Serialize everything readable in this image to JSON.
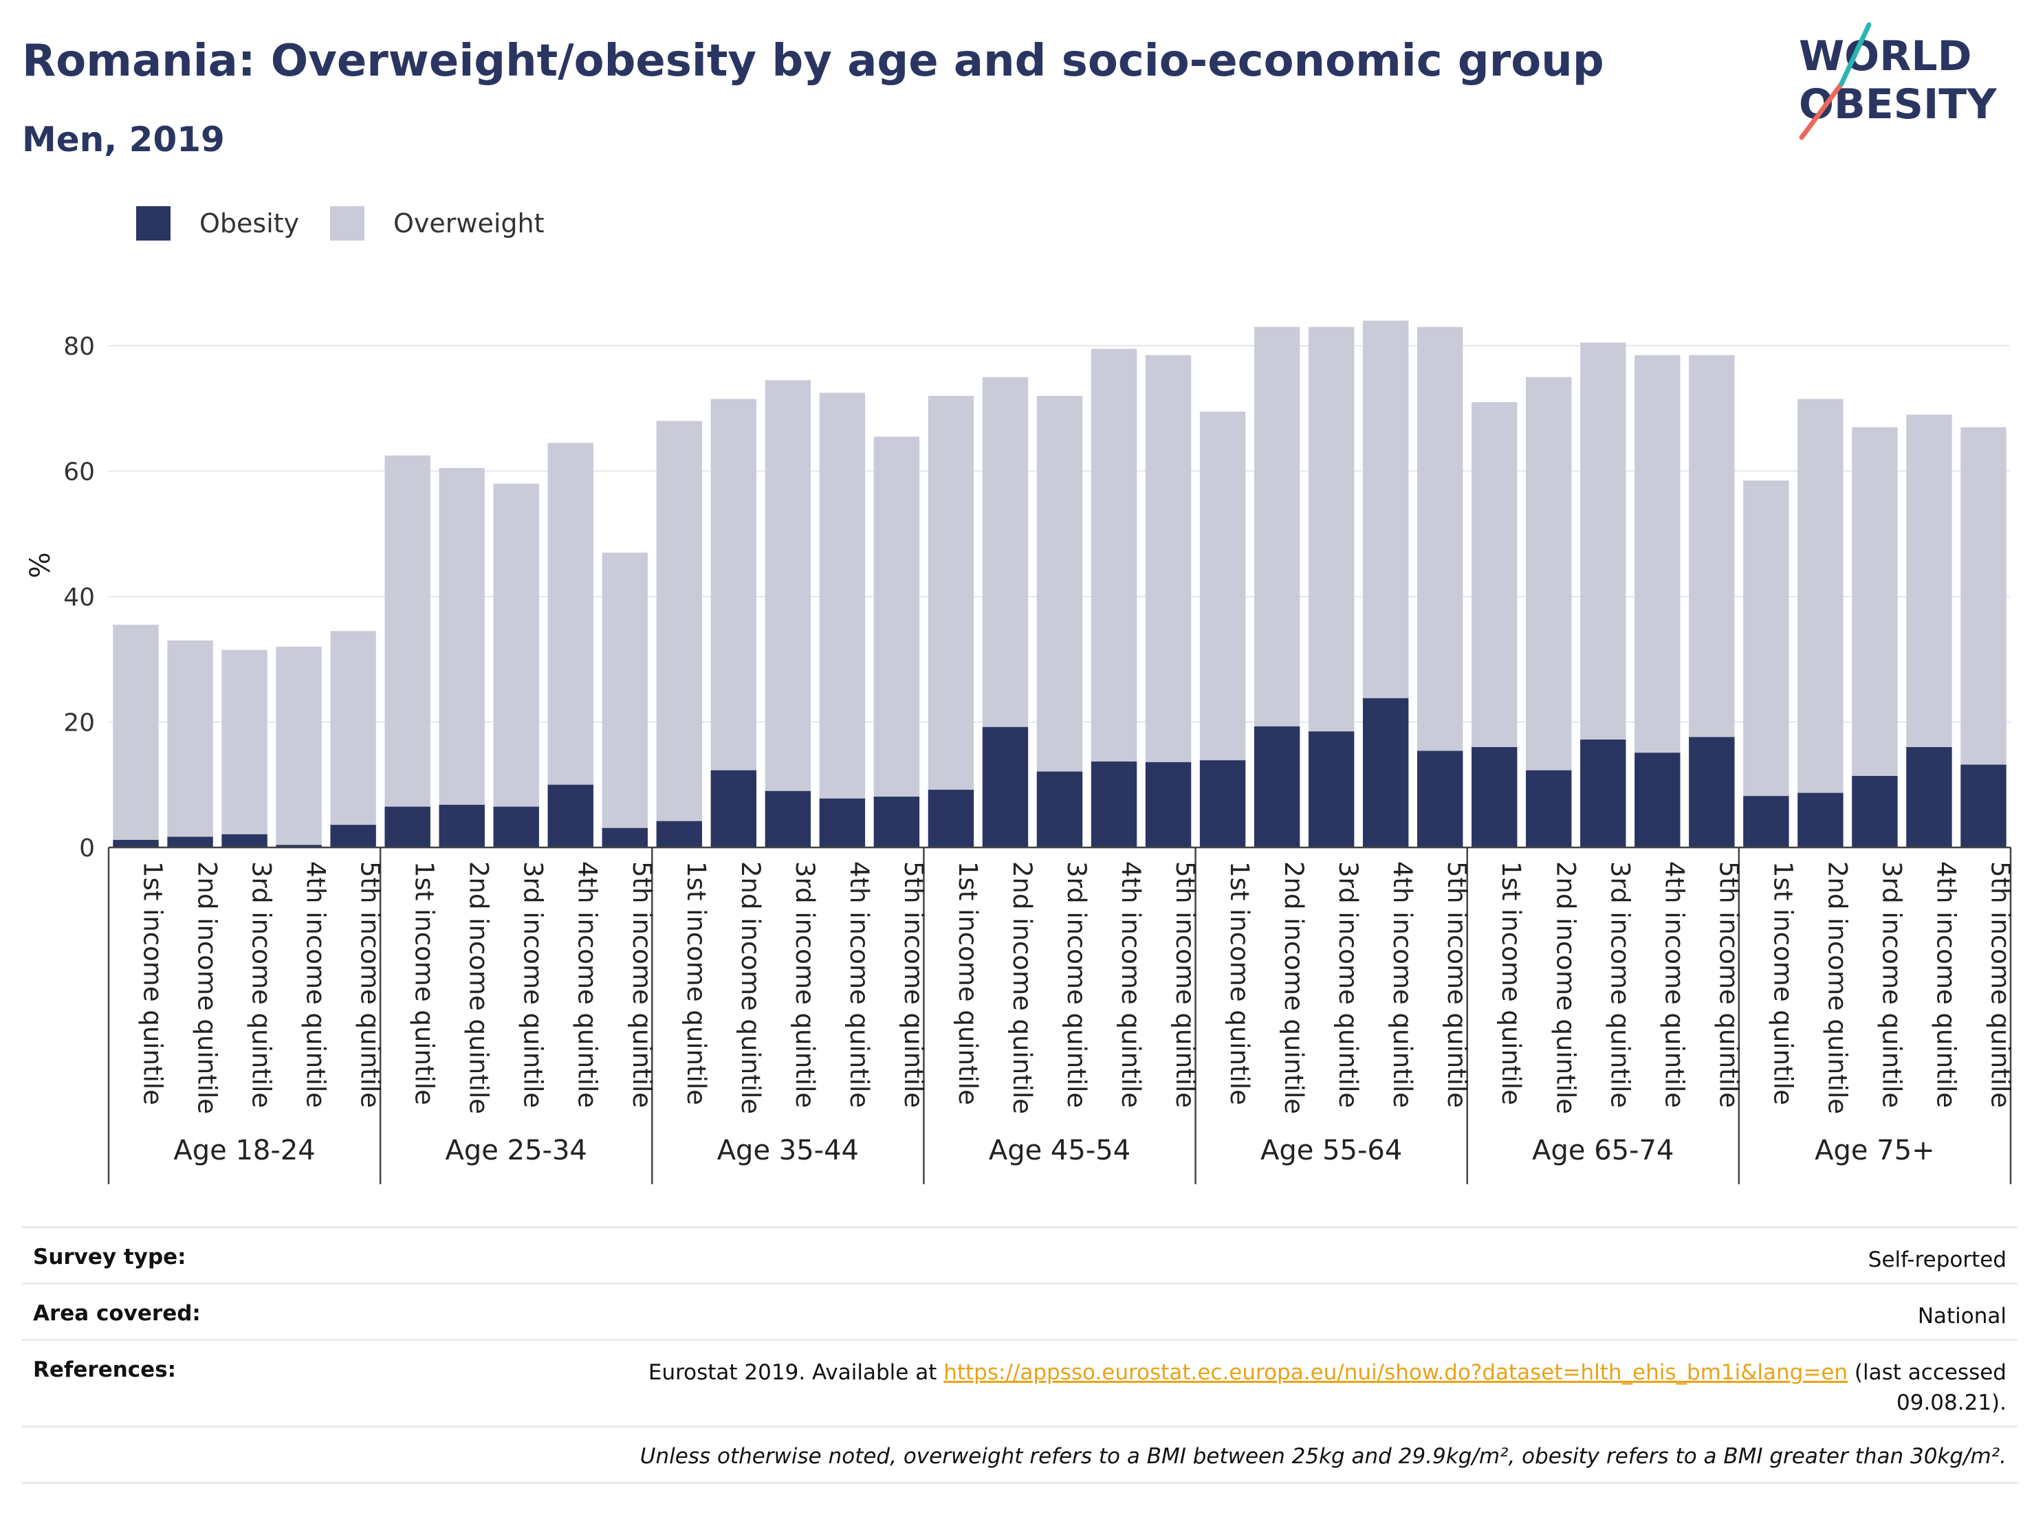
{
  "header": {
    "title": "Romania: Overweight/obesity by age and socio-economic group",
    "subtitle": "Men, 2019"
  },
  "logo": {
    "line1": "WORLD",
    "line2": "OBESITY",
    "name": "world-obesity-logo"
  },
  "legend": [
    {
      "label": "Obesity",
      "color": "#2a3561"
    },
    {
      "label": "Overweight",
      "color": "#c9cbd8"
    }
  ],
  "chart_data": {
    "type": "bar",
    "stacked": false,
    "overlay": true,
    "ylabel": "%",
    "ylim": [
      0,
      90
    ],
    "yticks": [
      0,
      20,
      40,
      60,
      80
    ],
    "grid": true,
    "legend_position": "top-left",
    "quintiles": [
      "1st income quintile",
      "2nd income quintile",
      "3rd income quintile",
      "4th income quintile",
      "5th income quintile"
    ],
    "groups": [
      "Age 18-24",
      "Age 25-34",
      "Age 35-44",
      "Age 45-54",
      "Age 55-64",
      "Age 65-74",
      "Age 75+"
    ],
    "series": [
      {
        "name": "Overweight",
        "color": "#c9cbd8",
        "values": [
          35.5,
          33,
          31.5,
          32,
          34.5,
          62.5,
          60.5,
          58,
          64.5,
          47,
          68,
          71.5,
          74.5,
          72.5,
          65.5,
          72,
          75,
          72,
          79.5,
          78.5,
          69.5,
          83,
          83,
          84,
          83,
          71,
          75,
          80.5,
          78.5,
          78.5,
          58.5,
          71.5,
          67,
          69,
          67
        ]
      },
      {
        "name": "Obesity",
        "color": "#2a3561",
        "values": [
          1.2,
          1.7,
          2.1,
          0.4,
          3.6,
          6.5,
          6.8,
          6.5,
          10,
          3.1,
          4.2,
          12.3,
          9,
          7.8,
          8.1,
          9.2,
          19.2,
          12.1,
          13.7,
          13.6,
          13.9,
          19.3,
          18.5,
          23.8,
          15.4,
          16,
          12.3,
          17.2,
          15.1,
          17.6,
          8.2,
          8.7,
          11.4,
          16,
          13.2
        ]
      }
    ]
  },
  "meta": {
    "survey_label": "Survey type:",
    "survey_value": "Self-reported",
    "area_label": "Area covered:",
    "area_value": "National",
    "refs_label": "References:",
    "refs_prefix": "Eurostat 2019. Available at ",
    "refs_link": "https://appsso.eurostat.ec.europa.eu/nui/show.do?dataset=hlth_ehis_bm1i&lang=en",
    "refs_suffix": " (last accessed",
    "refs_date": "09.08.21).",
    "note": "Unless otherwise noted, overweight refers to a BMI between 25kg and 29.9kg/m², obesity refers to a BMI greater than 30kg/m²."
  }
}
